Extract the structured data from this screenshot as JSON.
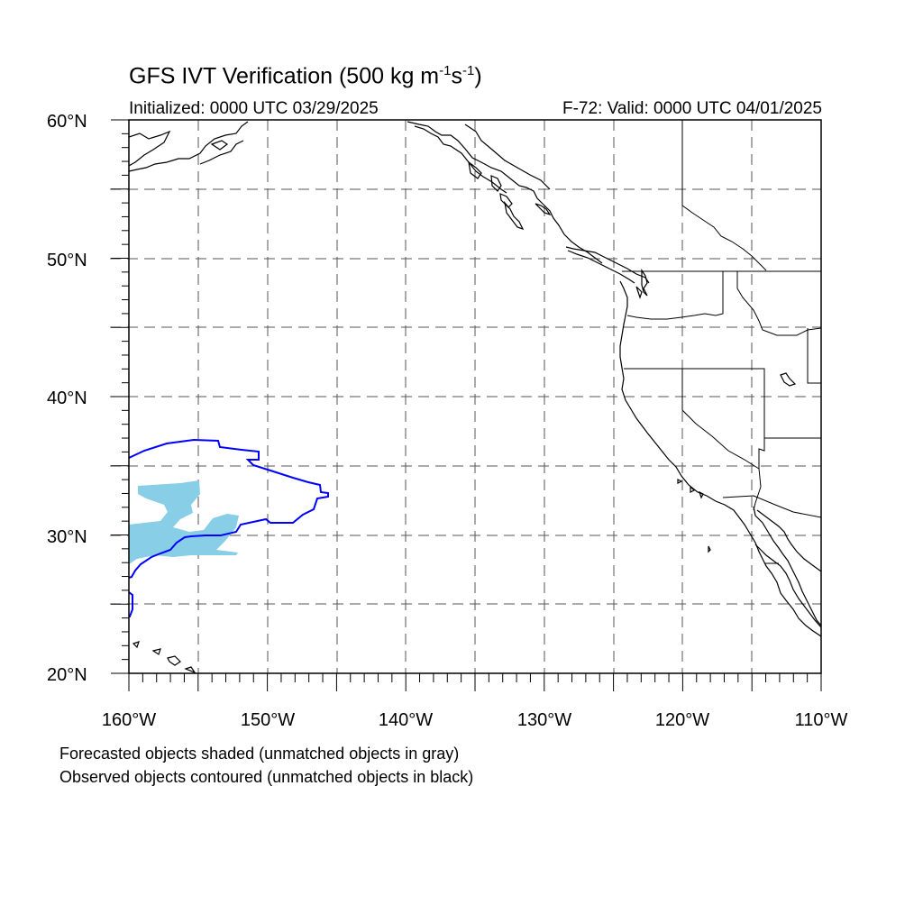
{
  "title": {
    "prefix": "GFS IVT Verification (500 kg m",
    "exp1": "-1",
    "mid": "s",
    "exp2": "-1",
    "suffix": ")"
  },
  "initialized": "Initialized: 0000 UTC 03/29/2025",
  "valid": "F-72: Valid: 0000 UTC 04/01/2025",
  "lat_labels": [
    "60°N",
    "50°N",
    "40°N",
    "30°N",
    "20°N"
  ],
  "lon_labels": [
    "160°W",
    "150°W",
    "140°W",
    "130°W",
    "120°W",
    "110°W"
  ],
  "map_extent": {
    "lon_min": -160,
    "lon_max": -110,
    "lat_min": 20,
    "lat_max": 60
  },
  "colors": {
    "forecast_object": "#87CEE6",
    "observed_contour": "#0000FF",
    "coast": "#000000"
  },
  "footnotes": [
    "Forecasted objects shaded (unmatched objects in gray)",
    "Observed objects contoured (unmatched objects in black)"
  ]
}
